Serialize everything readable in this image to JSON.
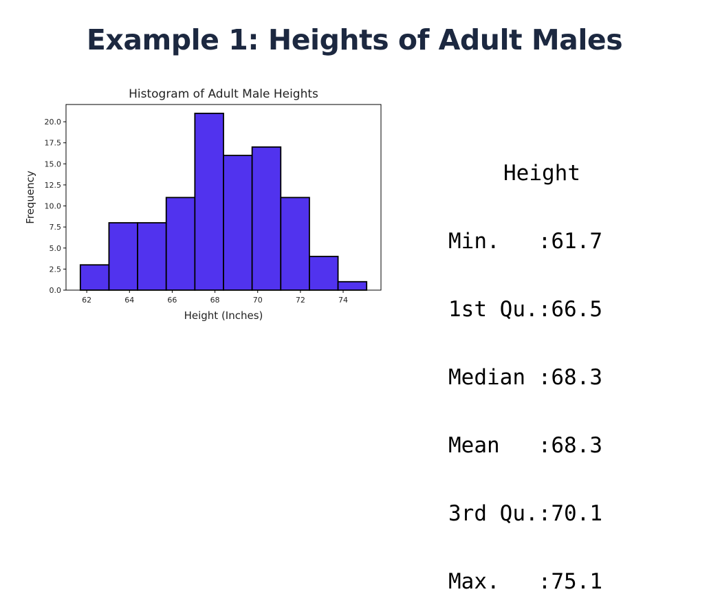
{
  "slide": {
    "title": "Example 1: Heights of Adult Males"
  },
  "chart_data": {
    "type": "bar",
    "subtype": "histogram",
    "title": "Histogram of Adult Male Heights",
    "xlabel": "Height (Inches)",
    "ylabel": "Frequency",
    "bin_edges": [
      61.7,
      63.04,
      64.38,
      65.72,
      67.06,
      68.4,
      69.74,
      71.08,
      72.42,
      73.76,
      75.1
    ],
    "values": [
      3,
      8,
      8,
      11,
      21,
      16,
      17,
      11,
      4,
      1
    ],
    "xlim": [
      61.03,
      75.77
    ],
    "ylim": [
      0,
      22.05
    ],
    "xticks": [
      62,
      64,
      66,
      68,
      70,
      72,
      74
    ],
    "yticks": [
      0.0,
      2.5,
      5.0,
      7.5,
      10.0,
      12.5,
      15.0,
      17.5,
      20.0
    ],
    "xtick_labels": [
      "62",
      "64",
      "66",
      "68",
      "70",
      "72",
      "74"
    ],
    "ytick_labels": [
      "0.0",
      "2.5",
      "5.0",
      "7.5",
      "10.0",
      "12.5",
      "15.0",
      "17.5",
      "20.0"
    ],
    "bar_color": "#5133ee",
    "edge_color": "#000000",
    "grid": false
  },
  "summary": {
    "header": "Height",
    "rows": [
      {
        "label": "Min.   ",
        "value": "61.7"
      },
      {
        "label": "1st Qu.",
        "value": "66.5"
      },
      {
        "label": "Median ",
        "value": "68.3"
      },
      {
        "label": "Mean   ",
        "value": "68.3"
      },
      {
        "label": "3rd Qu.",
        "value": "70.1"
      },
      {
        "label": "Max.   ",
        "value": "75.1"
      }
    ]
  }
}
